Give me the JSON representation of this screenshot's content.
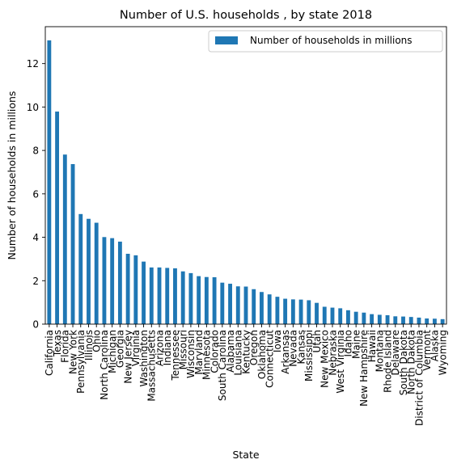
{
  "chart_data": {
    "type": "bar",
    "title": "Number of U.S. households , by state 2018",
    "xlabel": "State",
    "ylabel": "Number of households in millions",
    "ylim": [
      0,
      13.7
    ],
    "yticks": [
      0,
      2,
      4,
      6,
      8,
      10,
      12
    ],
    "grid": false,
    "legend_position": "top-right",
    "bar_color": "#1f77b4",
    "categories": [
      "California",
      "Texas",
      "Florida",
      "New York",
      "Pennsylvania",
      "Illinois",
      "Ohio",
      "North Carolina",
      "Michigan",
      "Georgia",
      "New Jersey",
      "Virginia",
      "Washington",
      "Massachusetts",
      "Arizona",
      "Indiana",
      "Tennessee",
      "Missouri",
      "Wisconsin",
      "Maryland",
      "Minnesota",
      "Colorado",
      "South Carolina",
      "Alabama",
      "Louisiana",
      "Kentucky",
      "Oregon",
      "Oklahoma",
      "Connecticut",
      "Iowa",
      "Arkansas",
      "Nevada",
      "Kansas",
      "Mississippi",
      "Utah",
      "New Mexico",
      "Nebraska",
      "West Virginia",
      "Idaho",
      "Maine",
      "New Hampshire",
      "Hawaii",
      "Montana",
      "Rhode Island",
      "Delaware",
      "South Dakota",
      "North Dakota",
      "District of Columbia",
      "Vermont",
      "Alaska",
      "Wyoming"
    ],
    "series": [
      {
        "name": "Number of households in millions",
        "values": [
          13.07,
          9.79,
          7.81,
          7.37,
          5.07,
          4.85,
          4.67,
          4.01,
          3.96,
          3.8,
          3.24,
          3.17,
          2.88,
          2.61,
          2.61,
          2.59,
          2.57,
          2.43,
          2.35,
          2.21,
          2.17,
          2.16,
          1.91,
          1.86,
          1.74,
          1.73,
          1.61,
          1.48,
          1.37,
          1.26,
          1.17,
          1.14,
          1.13,
          1.1,
          0.98,
          0.8,
          0.76,
          0.73,
          0.64,
          0.57,
          0.53,
          0.46,
          0.43,
          0.41,
          0.36,
          0.35,
          0.33,
          0.3,
          0.26,
          0.25,
          0.23
        ]
      }
    ]
  }
}
